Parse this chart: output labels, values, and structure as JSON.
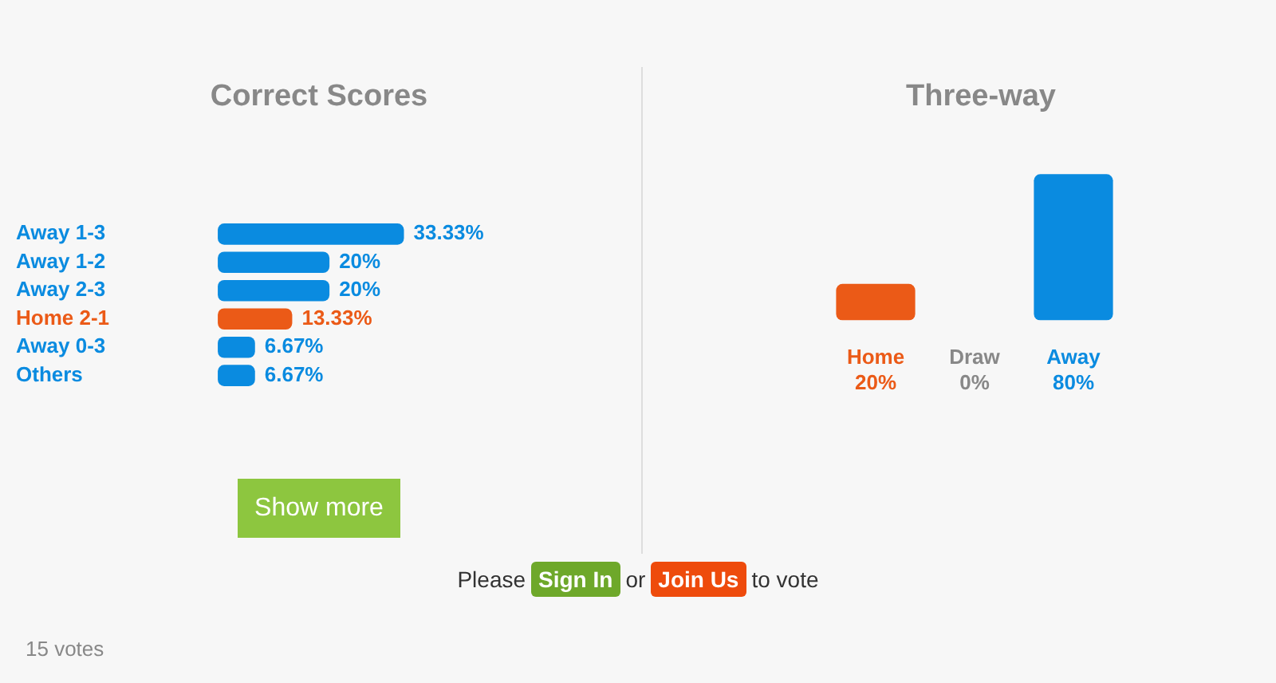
{
  "chart_data": [
    {
      "type": "bar",
      "orientation": "horizontal",
      "title": "Correct Scores",
      "categories": [
        "Away 1-3",
        "Away 1-2",
        "Away 2-3",
        "Home 2-1",
        "Away 0-3",
        "Others"
      ],
      "values": [
        33.33,
        20,
        20,
        13.33,
        6.67,
        6.67
      ],
      "colors": [
        "#0a8be0",
        "#0a8be0",
        "#0a8be0",
        "#eb5a17",
        "#0a8be0",
        "#0a8be0"
      ],
      "value_labels": [
        "33.33%",
        "20%",
        "20%",
        "13.33%",
        "6.67%",
        "6.67%"
      ],
      "tick_labels": "y",
      "annotations": [
        "Show more",
        "15 votes"
      ]
    },
    {
      "type": "bar",
      "title": "Three-way",
      "categories": [
        "Home",
        "Draw",
        "Away"
      ],
      "values": [
        20,
        0,
        80
      ],
      "colors": [
        "#eb5a17",
        "#888888",
        "#0a8be0"
      ],
      "value_labels": [
        "20%",
        "0%",
        "80%"
      ],
      "tick_labels": "x",
      "annotations": [
        "Please",
        "Sign In",
        "or",
        "Join Us",
        "to vote"
      ]
    }
  ]
}
